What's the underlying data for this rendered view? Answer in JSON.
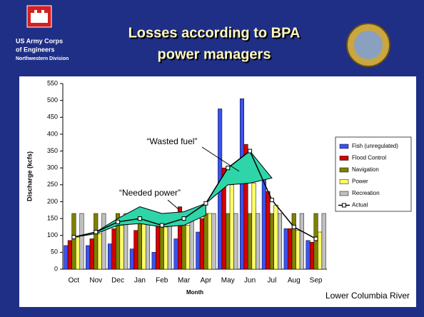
{
  "header": {
    "org": [
      "US Army Corps",
      "of Engineers"
    ],
    "division": "Northwestern Division"
  },
  "chart_data": {
    "type": "bar",
    "title": [
      "Losses according to BPA",
      "power managers"
    ],
    "x_label": "Month",
    "y_label": "Discharge (kcfs)",
    "note": "Lower Columbia River",
    "categories": [
      "Oct",
      "Nov",
      "Dec",
      "Jan",
      "Feb",
      "Mar",
      "Apr",
      "May",
      "Jun",
      "Jul",
      "Aug",
      "Sep"
    ],
    "ylim": [
      0,
      550
    ],
    "yticks": [
      0,
      50,
      100,
      150,
      200,
      250,
      300,
      350,
      400,
      450,
      500,
      550
    ],
    "grid": false,
    "series": [
      {
        "name": "Fish (unregulated)",
        "color": "#3a52f0",
        "values": [
          70,
          70,
          75,
          60,
          50,
          90,
          110,
          475,
          505,
          265,
          120,
          85
        ]
      },
      {
        "name": "Flood Control",
        "color": "#d40000",
        "values": [
          85,
          90,
          120,
          115,
          130,
          185,
          150,
          300,
          370,
          230,
          120,
          80
        ]
      },
      {
        "name": "Navigation",
        "color": "#808000",
        "values": [
          165,
          165,
          165,
          165,
          165,
          165,
          165,
          165,
          165,
          165,
          165,
          165
        ]
      },
      {
        "name": "Power",
        "color": "#ffff66",
        "values": [
          95,
          105,
          130,
          140,
          125,
          130,
          165,
          250,
          255,
          190,
          115,
          110
        ]
      },
      {
        "name": "Recreation",
        "color": "#c0c0c0",
        "values": [
          165,
          165,
          165,
          165,
          165,
          165,
          165,
          165,
          165,
          165,
          165,
          165
        ]
      },
      {
        "name": "Actual",
        "type": "line",
        "color": "#000000",
        "values": [
          95,
          110,
          140,
          150,
          130,
          150,
          195,
          300,
          350,
          205,
          125,
          90
        ]
      }
    ],
    "regions": [
      {
        "label": "“Needed power”",
        "color": "#2ed5a8",
        "upper": [
          95,
          110,
          150,
          185,
          165,
          170,
          195,
          null,
          null,
          null,
          null,
          null
        ],
        "lower": [
          95,
          105,
          130,
          135,
          125,
          130,
          160,
          null,
          null,
          null,
          null,
          null
        ]
      },
      {
        "label": "“Wasted fuel”",
        "color": "#2ed5a8",
        "upper": [
          null,
          null,
          null,
          null,
          null,
          null,
          195,
          300,
          350,
          270,
          null,
          null
        ],
        "lower": [
          null,
          null,
          null,
          null,
          null,
          null,
          195,
          250,
          255,
          270,
          null,
          null
        ]
      }
    ]
  }
}
